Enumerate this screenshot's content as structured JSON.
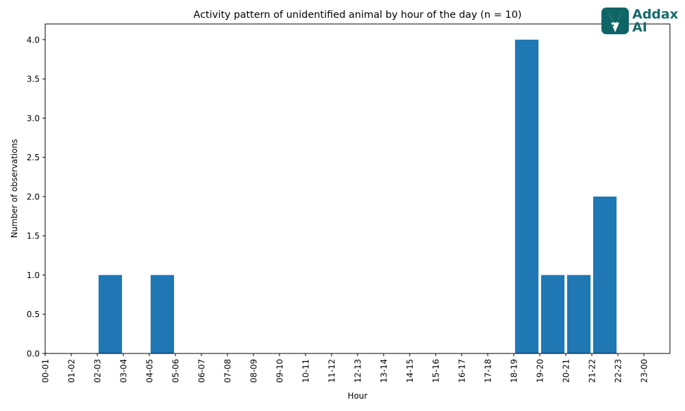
{
  "chart_data": {
    "type": "bar",
    "title": "Activity pattern of unidentified animal by hour of the day (n = 10)",
    "xlabel": "Hour",
    "ylabel": "Number of observations",
    "categories": [
      "00-01",
      "01-02",
      "02-03",
      "03-04",
      "04-05",
      "05-06",
      "06-07",
      "07-08",
      "08-09",
      "09-10",
      "10-11",
      "11-12",
      "12-13",
      "13-14",
      "14-15",
      "15-16",
      "16-17",
      "17-18",
      "18-19",
      "19-20",
      "20-21",
      "21-22",
      "22-23",
      "23-00"
    ],
    "values": [
      0,
      0,
      1,
      0,
      1,
      0,
      0,
      0,
      0,
      0,
      0,
      0,
      0,
      0,
      0,
      0,
      0,
      0,
      4,
      1,
      1,
      2,
      0,
      0
    ],
    "ylim": [
      0,
      4.2
    ],
    "yticks": [
      "0.0",
      "0.5",
      "1.0",
      "1.5",
      "2.0",
      "2.5",
      "3.0",
      "3.5",
      "4.0"
    ],
    "bar_color": "#1f77b4",
    "grid": false,
    "legend": "none"
  },
  "logo": {
    "line1": "Addax",
    "line2": "AI",
    "brand_color": "#0f6466",
    "icon": "antelope-head-icon"
  }
}
